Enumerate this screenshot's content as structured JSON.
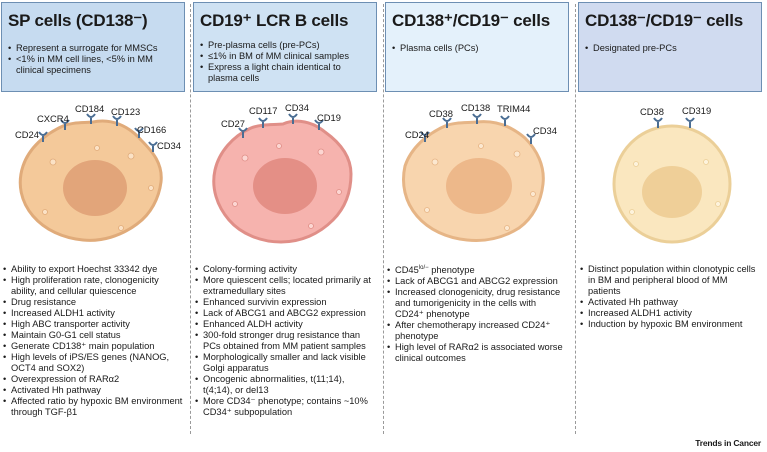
{
  "columns": [
    {
      "title": "SP cells (CD138⁻)",
      "header_items": [
        "Represent a surrogate for MMSCs",
        "<1% in MM cell lines, <5% in MM clinical specimens"
      ],
      "markers": [
        "CXCR4",
        "CD184",
        "CD123",
        "CD24",
        "CD166",
        "CD34"
      ],
      "features": [
        "Ability to export Hoechst 33342 dye",
        "High proliferation rate, clonogenicity ability, and cellular quiescence",
        "Drug resistance",
        "Increased ALDH1 activity",
        "High ABC transporter activity",
        "Maintain G0-G1 cell status",
        "Generate CD138⁺ main population",
        "High levels of iPS/ES genes (NANOG, OCT4 and SOX2)",
        "Overexpression of RARα2",
        "Activated Hh pathway",
        "Affected ratio by hypoxic BM environment through TGF-β1"
      ],
      "cell_color": "#f4c99a",
      "nucleus_color": "#e2a57a"
    },
    {
      "title": "CD19⁺ LCR B cells",
      "header_items": [
        "Pre-plasma cells (pre-PCs)",
        "≤1% in BM of MM clinical samples",
        "Express a light chain identical to plasma cells"
      ],
      "markers": [
        "CD117",
        "CD34",
        "CD27",
        "CD19"
      ],
      "features": [
        "Colony-forming activity",
        "More quiescent cells; located primarily at extramedullary sites",
        "Enhanced survivin expression",
        "Lack of ABCG1 and ABCG2 expression",
        "Enhanced ALDH activity",
        "300-fold stronger drug resistance than PCs obtained from MM patient samples",
        "Morphologically smaller and lack visible Golgi apparatus",
        "Oncogenic abnormalities, t(11;14), t(4;14), or del13",
        "More CD34⁻ phenotype; contains ~10% CD34⁺ subpopulation"
      ],
      "cell_color": "#f6b3ae",
      "nucleus_color": "#e48f86"
    },
    {
      "title": "CD138⁺/CD19⁻ cells",
      "header_items": [
        "Plasma cells (PCs)"
      ],
      "markers": [
        "CD38",
        "CD138",
        "TRIM44",
        "CD24",
        "CD34"
      ],
      "features": [
        "CD45lo/− phenotype",
        "Lack of ABCG1 and ABCG2 expression",
        "Increased clonogenicity, drug resistance and tumorigenicity in the cells with CD24⁺ phenotype",
        "After chemotherapy increased CD24⁺ phenotype",
        "High level of RARα2 is associated worse clinical outcomes"
      ],
      "cell_color": "#f8d5ae",
      "nucleus_color": "#edb88a"
    },
    {
      "title": "CD138⁻/CD19⁻ cells",
      "header_items": [
        "Designated pre-PCs"
      ],
      "markers": [
        "CD38",
        "CD319"
      ],
      "features": [
        "Distinct population within clonotypic cells in BM and peripheral blood of MM patients",
        "Activated Hh pathway",
        "Increased ALDH1 activity",
        "Induction by hypoxic BM environment"
      ],
      "cell_color": "#fae7bf",
      "nucleus_color": "#efcf98"
    }
  ],
  "watermark": "Trends in Cancer"
}
